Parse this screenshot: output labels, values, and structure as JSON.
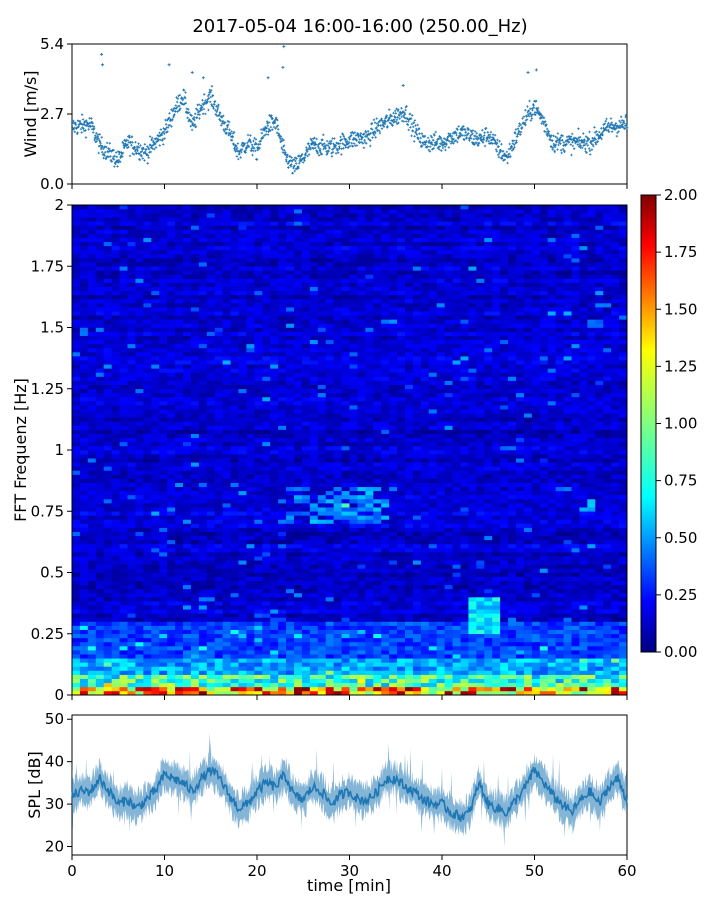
{
  "title": "2017-05-04 16:00-16:00 (250.00_Hz)",
  "chart_data": [
    {
      "type": "scatter",
      "name": "wind-panel",
      "ylabel": "Wind [m/s]",
      "xlabel": "",
      "xlim": [
        0,
        60
      ],
      "ylim": [
        0,
        5.4
      ],
      "yticks": [
        0.0,
        2.7,
        5.4
      ],
      "ytick_labels": [
        "0.0",
        "2.7",
        "5.4"
      ],
      "xticks": [
        0,
        10,
        20,
        30,
        40,
        50,
        60
      ],
      "color": "#1f77b4",
      "marker": "+",
      "level_profile": {
        "x": [
          0,
          2,
          3,
          5,
          6,
          8,
          10,
          11,
          12,
          13,
          14,
          15,
          16,
          17,
          18,
          19,
          20,
          21,
          22,
          23,
          24,
          25,
          26,
          28,
          30,
          32,
          33,
          34,
          35,
          36,
          37,
          38,
          40,
          42,
          44,
          45,
          46,
          47,
          48,
          49,
          50,
          51,
          52,
          54,
          56,
          58,
          60
        ],
        "y": [
          2.2,
          2.3,
          1.5,
          0.9,
          1.6,
          1.2,
          2.0,
          2.8,
          3.4,
          2.2,
          3.0,
          3.4,
          2.6,
          2.0,
          1.2,
          1.6,
          1.3,
          2.2,
          2.4,
          1.1,
          0.6,
          1.0,
          1.5,
          1.4,
          1.7,
          1.8,
          2.2,
          2.4,
          2.6,
          2.8,
          2.1,
          1.6,
          1.6,
          2.0,
          1.7,
          1.9,
          1.4,
          1.0,
          1.8,
          2.5,
          3.0,
          2.4,
          1.6,
          1.6,
          1.6,
          2.2,
          2.3
        ]
      },
      "outliers": [
        {
          "x": 3.2,
          "y": 5.0
        },
        {
          "x": 3.3,
          "y": 4.6
        },
        {
          "x": 10.5,
          "y": 4.6
        },
        {
          "x": 13.0,
          "y": 4.3
        },
        {
          "x": 14.2,
          "y": 4.1
        },
        {
          "x": 21.2,
          "y": 4.1
        },
        {
          "x": 22.9,
          "y": 5.3
        },
        {
          "x": 22.8,
          "y": 4.5
        },
        {
          "x": 35.8,
          "y": 3.8
        },
        {
          "x": 49.3,
          "y": 4.3
        },
        {
          "x": 50.2,
          "y": 4.4
        }
      ]
    },
    {
      "type": "heatmap",
      "name": "spectrogram-panel",
      "ylabel": "FFT Frequenz [Hz]",
      "xlabel": "",
      "xlim": [
        0,
        60
      ],
      "ylim": [
        0,
        2
      ],
      "yticks": [
        0,
        0.25,
        0.5,
        0.75,
        1,
        1.25,
        1.5,
        1.75,
        2
      ],
      "ytick_labels": [
        "0",
        "0.25",
        "0.5",
        "0.75",
        "1",
        "1.25",
        "1.5",
        "1.75",
        "2"
      ],
      "xticks": [
        0,
        10,
        20,
        30,
        40,
        50,
        60
      ],
      "colormap": "jet",
      "colorbar": {
        "vmin": 0.0,
        "vmax": 2.0,
        "ticks": [
          0.0,
          0.25,
          0.5,
          0.75,
          1.0,
          1.25,
          1.5,
          1.75,
          2.0
        ],
        "tick_labels": [
          "0.00",
          "0.25",
          "0.50",
          "0.75",
          "1.00",
          "1.25",
          "1.50",
          "1.75",
          "2.00"
        ],
        "stops": [
          "#00007f",
          "#0000ff",
          "#007fff",
          "#00ffff",
          "#7fff7f",
          "#ffff00",
          "#ff7f00",
          "#ff0000",
          "#7f0000"
        ]
      },
      "notes": {
        "low_frequency_band_hz": [
          0,
          0.15
        ],
        "low_frequency_typical_value": 1.0,
        "background_value": 0.2,
        "bright_patch": {
          "x": [
            43,
            46
          ],
          "y": [
            0.25,
            0.4
          ],
          "value": 0.7
        },
        "mid_patch_1": {
          "x": [
            22,
            34
          ],
          "y": [
            0.7,
            0.85
          ],
          "value": 0.55
        },
        "mid_patch_2": {
          "x": [
            55,
            57
          ],
          "y": [
            0.75,
            0.8
          ],
          "value": 0.6
        }
      }
    },
    {
      "type": "line",
      "name": "spl-panel",
      "ylabel": "SPL [dB]",
      "xlabel": "time [min]",
      "xlim": [
        0,
        60
      ],
      "ylim": [
        18,
        51
      ],
      "yticks": [
        20,
        30,
        40,
        50
      ],
      "ytick_labels": [
        "20",
        "30",
        "40",
        "50"
      ],
      "xticks": [
        0,
        10,
        20,
        30,
        40,
        50,
        60
      ],
      "xtick_labels": [
        "0",
        "10",
        "20",
        "30",
        "40",
        "50",
        "60"
      ],
      "color": "#1f77b4",
      "series": [
        {
          "x": [
            0,
            1,
            2,
            3,
            4,
            5,
            6,
            7,
            8,
            9,
            10,
            11,
            12,
            13,
            14,
            15,
            16,
            17,
            18,
            19,
            20,
            21,
            22,
            23,
            24,
            25,
            26,
            27,
            28,
            29,
            30,
            31,
            32,
            33,
            34,
            35,
            36,
            37,
            38,
            39,
            40,
            41,
            42,
            43,
            44,
            45,
            46,
            47,
            48,
            49,
            50,
            51,
            52,
            53,
            54,
            55,
            56,
            57,
            58,
            59,
            60
          ],
          "y": [
            32,
            33,
            33,
            36,
            33,
            30,
            31,
            29,
            31,
            33,
            37,
            36,
            35,
            33,
            36,
            38,
            36,
            32,
            29,
            30,
            33,
            35,
            34,
            37,
            32,
            31,
            34,
            33,
            30,
            32,
            33,
            31,
            31,
            33,
            36,
            36,
            34,
            33,
            31,
            30,
            30,
            28,
            27,
            28,
            35,
            30,
            29,
            28,
            31,
            34,
            38,
            35,
            32,
            30,
            28,
            31,
            33,
            30,
            34,
            36,
            31
          ]
        }
      ]
    }
  ]
}
